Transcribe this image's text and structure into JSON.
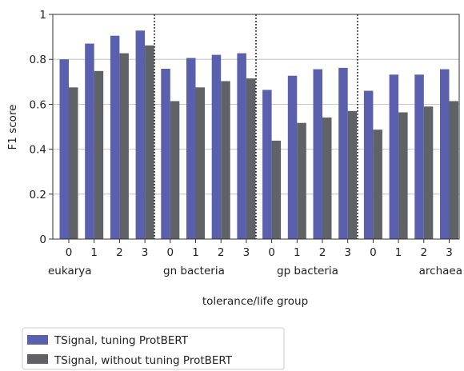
{
  "chart_data": {
    "type": "bar",
    "xlabel": "tolerance/life group",
    "ylabel": "F1 score",
    "ylim": [
      0,
      1
    ],
    "yticks": [
      "0",
      "0.2",
      "0.4",
      "0.6",
      "0.8",
      "1"
    ],
    "grid": "horizontal",
    "legend_position": "bottom-left",
    "groups": [
      {
        "name": "eukarya",
        "categories": [
          "0",
          "1",
          "2",
          "3"
        ]
      },
      {
        "name": "gn bacteria",
        "categories": [
          "0",
          "1",
          "2",
          "3"
        ]
      },
      {
        "name": "gp bacteria",
        "categories": [
          "0",
          "1",
          "2",
          "3"
        ]
      },
      {
        "name": "archaea",
        "categories": [
          "0",
          "1",
          "2",
          "3"
        ]
      }
    ],
    "series": [
      {
        "name": "TSignal, tuning ProtBERT",
        "color": "#5a5fae",
        "values": [
          0.8,
          0.87,
          0.905,
          0.928,
          0.758,
          0.806,
          0.82,
          0.827,
          0.664,
          0.727,
          0.756,
          0.762,
          0.66,
          0.732,
          0.732,
          0.756
        ]
      },
      {
        "name": "TSignal, without tuning ProtBERT",
        "color": "#5f6266",
        "values": [
          0.675,
          0.748,
          0.827,
          0.862,
          0.614,
          0.675,
          0.703,
          0.715,
          0.438,
          0.517,
          0.541,
          0.57,
          0.487,
          0.564,
          0.59,
          0.614
        ]
      }
    ]
  }
}
